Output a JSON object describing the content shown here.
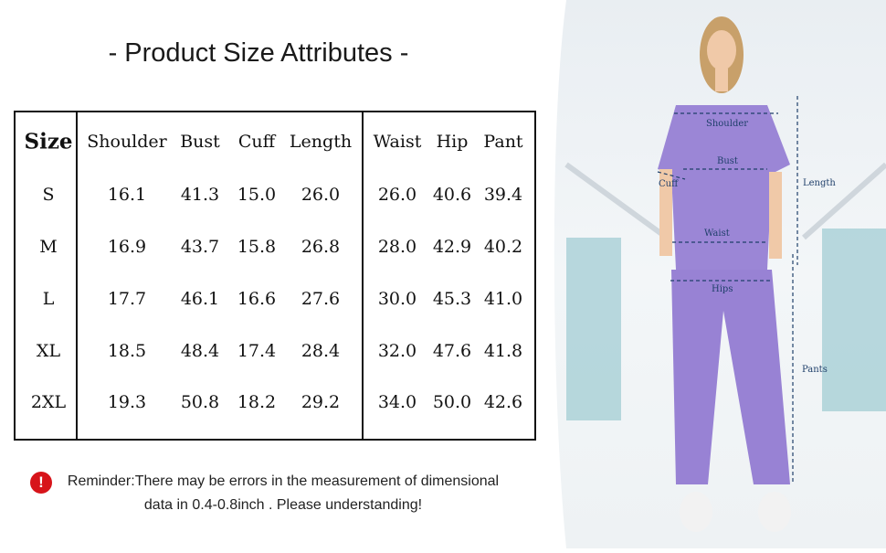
{
  "title": "- Product Size Attributes -",
  "table": {
    "headers": [
      "Size",
      "Shoulder",
      "Bust",
      "Cuff",
      "Length",
      "Waist",
      "Hip",
      "Pant"
    ],
    "rows": [
      [
        "S",
        "16.1",
        "41.3",
        "15.0",
        "26.0",
        "26.0",
        "40.6",
        "39.4"
      ],
      [
        "M",
        "16.9",
        "43.7",
        "15.8",
        "26.8",
        "28.0",
        "42.9",
        "40.2"
      ],
      [
        "L",
        "17.7",
        "46.1",
        "16.6",
        "27.6",
        "30.0",
        "45.3",
        "41.0"
      ],
      [
        "XL",
        "18.5",
        "48.4",
        "17.4",
        "28.4",
        "32.0",
        "47.6",
        "41.8"
      ],
      [
        "2XL",
        "19.3",
        "50.8",
        "18.2",
        "29.2",
        "34.0",
        "50.0",
        "42.6"
      ]
    ]
  },
  "reminder": {
    "icon": "exclamation-icon",
    "line1": "Reminder:There may be errors in the measurement of dimensional",
    "line2": "data in 0.4-0.8inch . Please understanding!"
  },
  "measure_labels": {
    "shoulder": "Shoulder",
    "bust": "Bust",
    "cuff": "Cuff",
    "length": "Length",
    "waist": "Waist",
    "hips": "Hips",
    "pants": "Pants"
  },
  "colors": {
    "scrubs": "#9b86d6",
    "annotation": "#1f3f6a",
    "alert": "#d7141a"
  }
}
